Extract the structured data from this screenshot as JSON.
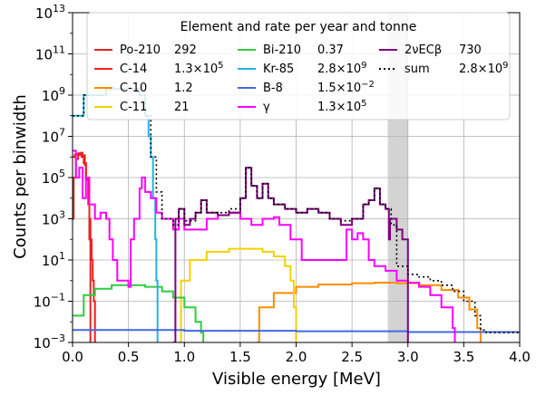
{
  "chart_data": {
    "type": "line",
    "xlabel": "Visible energy [MeV]",
    "ylabel": "Counts per binwidth",
    "xlim": [
      0,
      4
    ],
    "ylim": [
      0.001,
      10000000000000
    ],
    "yscale": "log",
    "grid": true,
    "x_ticks": [
      "0.0",
      "0.5",
      "1.0",
      "1.5",
      "2.0",
      "2.5",
      "3.0",
      "3.5",
      "4.0"
    ],
    "y_ticks": [
      {
        "base": "10",
        "exp": "−3"
      },
      {
        "base": "10",
        "exp": "−1"
      },
      {
        "base": "10",
        "exp": "1"
      },
      {
        "base": "10",
        "exp": "3"
      },
      {
        "base": "10",
        "exp": "5"
      },
      {
        "base": "10",
        "exp": "7"
      },
      {
        "base": "10",
        "exp": "9"
      },
      {
        "base": "10",
        "exp": "11"
      },
      {
        "base": "10",
        "exp": "13"
      }
    ],
    "shaded_band": {
      "x": [
        2.82,
        3.0
      ],
      "color": "#d3d3d3"
    },
    "legend": {
      "title": "Element and rate per year and tonne",
      "placement": "top"
    },
    "series": [
      {
        "name": "Po-210",
        "rate": "292",
        "color": "#d62728",
        "points": [
          [
            0.0,
            1000.0
          ],
          [
            0.01,
            100000.0
          ],
          [
            0.03,
            800000.0
          ],
          [
            0.05,
            1500000.0
          ],
          [
            0.07,
            1600000.0
          ],
          [
            0.09,
            1200000.0
          ],
          [
            0.11,
            400000.0
          ],
          [
            0.12,
            80000.0
          ],
          [
            0.14,
            5000.0
          ],
          [
            0.15,
            100.0
          ],
          [
            0.16,
            0.001
          ]
        ]
      },
      {
        "name": "C-14",
        "rate": "1.3×10^5",
        "color": "#ff1a1a",
        "points": [
          [
            0.0,
            1000000.0
          ],
          [
            0.02,
            1300000.0
          ],
          [
            0.05,
            1300000.0
          ],
          [
            0.08,
            1000000.0
          ],
          [
            0.1,
            500000.0
          ],
          [
            0.12,
            100000.0
          ],
          [
            0.14,
            10000.0
          ],
          [
            0.15,
            1000.0
          ],
          [
            0.16,
            100.0
          ],
          [
            0.17,
            10
          ],
          [
            0.18,
            1
          ],
          [
            0.19,
            0.1
          ],
          [
            0.2,
            0.001
          ]
        ]
      },
      {
        "name": "C-10",
        "rate": "1.2",
        "color": "#ff8c00",
        "points": [
          [
            1.65,
            0.001
          ],
          [
            1.67,
            0.05
          ],
          [
            1.8,
            0.25
          ],
          [
            2.0,
            0.5
          ],
          [
            2.2,
            0.65
          ],
          [
            2.5,
            0.75
          ],
          [
            2.7,
            0.8
          ],
          [
            2.9,
            0.75
          ],
          [
            3.1,
            0.6
          ],
          [
            3.3,
            0.35
          ],
          [
            3.45,
            0.15
          ],
          [
            3.55,
            0.04
          ],
          [
            3.62,
            0.005
          ],
          [
            3.65,
            0.001
          ]
        ]
      },
      {
        "name": "C-11",
        "rate": "21",
        "color": "#f5d000",
        "points": [
          [
            0.95,
            0.001
          ],
          [
            0.97,
            1
          ],
          [
            1.05,
            10
          ],
          [
            1.2,
            25
          ],
          [
            1.4,
            35
          ],
          [
            1.55,
            35
          ],
          [
            1.7,
            25
          ],
          [
            1.8,
            15
          ],
          [
            1.9,
            5
          ],
          [
            1.95,
            1
          ],
          [
            1.98,
            0.05
          ],
          [
            2.0,
            0.001
          ]
        ]
      },
      {
        "name": "Bi-210",
        "rate": "0.37",
        "color": "#2ecc40",
        "points": [
          [
            0.0,
            0.02
          ],
          [
            0.1,
            0.2
          ],
          [
            0.2,
            0.4
          ],
          [
            0.35,
            0.6
          ],
          [
            0.5,
            0.6
          ],
          [
            0.65,
            0.5
          ],
          [
            0.8,
            0.3
          ],
          [
            0.9,
            0.15
          ],
          [
            1.0,
            0.05
          ],
          [
            1.1,
            0.01
          ],
          [
            1.15,
            0.003
          ],
          [
            1.17,
            0.001
          ]
        ]
      },
      {
        "name": "Kr-85",
        "rate": "2.8×10^9",
        "color": "#1fb5e0",
        "points": [
          [
            0.0,
            100000000.0
          ],
          [
            0.1,
            1000000000.0
          ],
          [
            0.3,
            2000000000.0
          ],
          [
            0.5,
            2000000000.0
          ],
          [
            0.6,
            1000000000.0
          ],
          [
            0.65,
            100000000.0
          ],
          [
            0.68,
            10000000.0
          ],
          [
            0.7,
            1000000.0
          ],
          [
            0.72,
            10000.0
          ],
          [
            0.74,
            100.0
          ],
          [
            0.75,
            1
          ],
          [
            0.76,
            0.001
          ]
        ]
      },
      {
        "name": "B-8",
        "rate": "1.5×10^−2",
        "color": "#4169e1",
        "points": [
          [
            0.0,
            0.004
          ],
          [
            1.0,
            0.0037
          ],
          [
            2.0,
            0.0035
          ],
          [
            3.0,
            0.0032
          ],
          [
            4.0,
            0.003
          ]
        ]
      },
      {
        "name": "γ",
        "rate": "1.3×10^5",
        "color": "#ff00ff",
        "points": [
          [
            0.0,
            2000000.0
          ],
          [
            0.03,
            100000.0
          ],
          [
            0.06,
            300000.0
          ],
          [
            0.09,
            10000.0
          ],
          [
            0.12,
            100000.0
          ],
          [
            0.15,
            5000.0
          ],
          [
            0.2,
            1000.0
          ],
          [
            0.25,
            2000.0
          ],
          [
            0.3,
            1000.0
          ],
          [
            0.33,
            100.0
          ],
          [
            0.36,
            10
          ],
          [
            0.4,
            1
          ],
          [
            0.5,
            0.5
          ],
          [
            0.52,
            100.0
          ],
          [
            0.55,
            1000.0
          ],
          [
            0.6,
            30000.0
          ],
          [
            0.62,
            100000.0
          ],
          [
            0.65,
            20000.0
          ],
          [
            0.7,
            10000.0
          ],
          [
            0.75,
            2000.0
          ],
          [
            0.8,
            1000.0
          ],
          [
            0.85,
            1000.0
          ],
          [
            0.9,
            300.0
          ],
          [
            0.95,
            1000.0
          ],
          [
            1.0,
            300.0
          ],
          [
            1.05,
            300.0
          ],
          [
            1.1,
            300.0
          ],
          [
            1.2,
            1000.0
          ],
          [
            1.3,
            1500.0
          ],
          [
            1.4,
            2000.0
          ],
          [
            1.5,
            1000.0
          ],
          [
            1.55,
            1000.0
          ],
          [
            1.6,
            500.0
          ],
          [
            1.7,
            1000.0
          ],
          [
            1.8,
            1200.0
          ],
          [
            1.85,
            500.0
          ],
          [
            1.95,
            100.0
          ],
          [
            2.0,
            100.0
          ],
          [
            2.05,
            10
          ],
          [
            2.2,
            10
          ],
          [
            2.3,
            10
          ],
          [
            2.4,
            10
          ],
          [
            2.45,
            300.0
          ],
          [
            2.5,
            100.0
          ],
          [
            2.55,
            200.0
          ],
          [
            2.6,
            100.0
          ],
          [
            2.65,
            10
          ],
          [
            2.7,
            5
          ],
          [
            2.8,
            3
          ],
          [
            2.9,
            1
          ],
          [
            3.0,
            0.8
          ],
          [
            3.1,
            0.5
          ],
          [
            3.2,
            0.2
          ],
          [
            3.3,
            0.05
          ],
          [
            3.4,
            0.005
          ],
          [
            3.42,
            0.001
          ]
        ]
      },
      {
        "name": "2νECβ",
        "rate": "730",
        "color": "#800080",
        "points": [
          [
            0.9,
            0.001
          ],
          [
            0.92,
            1000.0
          ],
          [
            0.95,
            3000.0
          ],
          [
            1.0,
            500.0
          ],
          [
            1.05,
            1000.0
          ],
          [
            1.1,
            2000.0
          ],
          [
            1.15,
            8000.0
          ],
          [
            1.2,
            2000.0
          ],
          [
            1.3,
            1500.0
          ],
          [
            1.4,
            2000.0
          ],
          [
            1.5,
            10000.0
          ],
          [
            1.55,
            300000.0
          ],
          [
            1.6,
            40000.0
          ],
          [
            1.65,
            10000.0
          ],
          [
            1.7,
            50000.0
          ],
          [
            1.75,
            10000.0
          ],
          [
            1.8,
            5000.0
          ],
          [
            1.9,
            3000.0
          ],
          [
            2.0,
            2000.0
          ],
          [
            2.1,
            3000.0
          ],
          [
            2.2,
            2000.0
          ],
          [
            2.3,
            1000.0
          ],
          [
            2.4,
            500.0
          ],
          [
            2.5,
            1000.0
          ],
          [
            2.6,
            5000.0
          ],
          [
            2.65,
            8000.0
          ],
          [
            2.7,
            30000.0
          ],
          [
            2.75,
            5000.0
          ],
          [
            2.8,
            3000.0
          ],
          [
            2.83,
            100.0
          ],
          [
            2.84,
            1000.0
          ],
          [
            2.85,
            1000.0
          ],
          [
            2.9,
            300.0
          ],
          [
            2.95,
            100.0
          ],
          [
            3.0,
            0.001
          ]
        ]
      },
      {
        "name": "sum",
        "rate": "2.8×10^9",
        "color": "#000000",
        "points": [
          [
            0.0,
            100000000.0
          ],
          [
            0.1,
            1000000000.0
          ],
          [
            0.3,
            2000000000.0
          ],
          [
            0.5,
            2000000000.0
          ],
          [
            0.6,
            1000000000.0
          ],
          [
            0.65,
            100000000.0
          ],
          [
            0.7,
            1000000.0
          ],
          [
            0.75,
            20000.0
          ],
          [
            0.8,
            1000.0
          ],
          [
            0.9,
            500.0
          ],
          [
            0.95,
            3000.0
          ],
          [
            1.0,
            800.0
          ],
          [
            1.1,
            2000.0
          ],
          [
            1.15,
            8000.0
          ],
          [
            1.2,
            2000.0
          ],
          [
            1.3,
            2000.0
          ],
          [
            1.4,
            3000.0
          ],
          [
            1.5,
            10000.0
          ],
          [
            1.55,
            300000.0
          ],
          [
            1.6,
            40000.0
          ],
          [
            1.65,
            10000.0
          ],
          [
            1.7,
            50000.0
          ],
          [
            1.75,
            10000.0
          ],
          [
            1.8,
            5000.0
          ],
          [
            1.9,
            3000.0
          ],
          [
            2.0,
            2000.0
          ],
          [
            2.1,
            3000.0
          ],
          [
            2.2,
            2000.0
          ],
          [
            2.3,
            1000.0
          ],
          [
            2.4,
            800.0
          ],
          [
            2.5,
            1000.0
          ],
          [
            2.6,
            5000.0
          ],
          [
            2.65,
            8000.0
          ],
          [
            2.7,
            30000.0
          ],
          [
            2.75,
            5000.0
          ],
          [
            2.8,
            3000.0
          ],
          [
            2.85,
            500.0
          ],
          [
            2.9,
            5
          ],
          [
            3.0,
            2
          ],
          [
            3.1,
            1.5
          ],
          [
            3.2,
            1
          ],
          [
            3.3,
            0.6
          ],
          [
            3.4,
            0.3
          ],
          [
            3.5,
            0.1
          ],
          [
            3.6,
            0.02
          ],
          [
            3.65,
            0.004
          ],
          [
            3.7,
            0.003
          ],
          [
            4.0,
            0.003
          ]
        ]
      }
    ]
  }
}
